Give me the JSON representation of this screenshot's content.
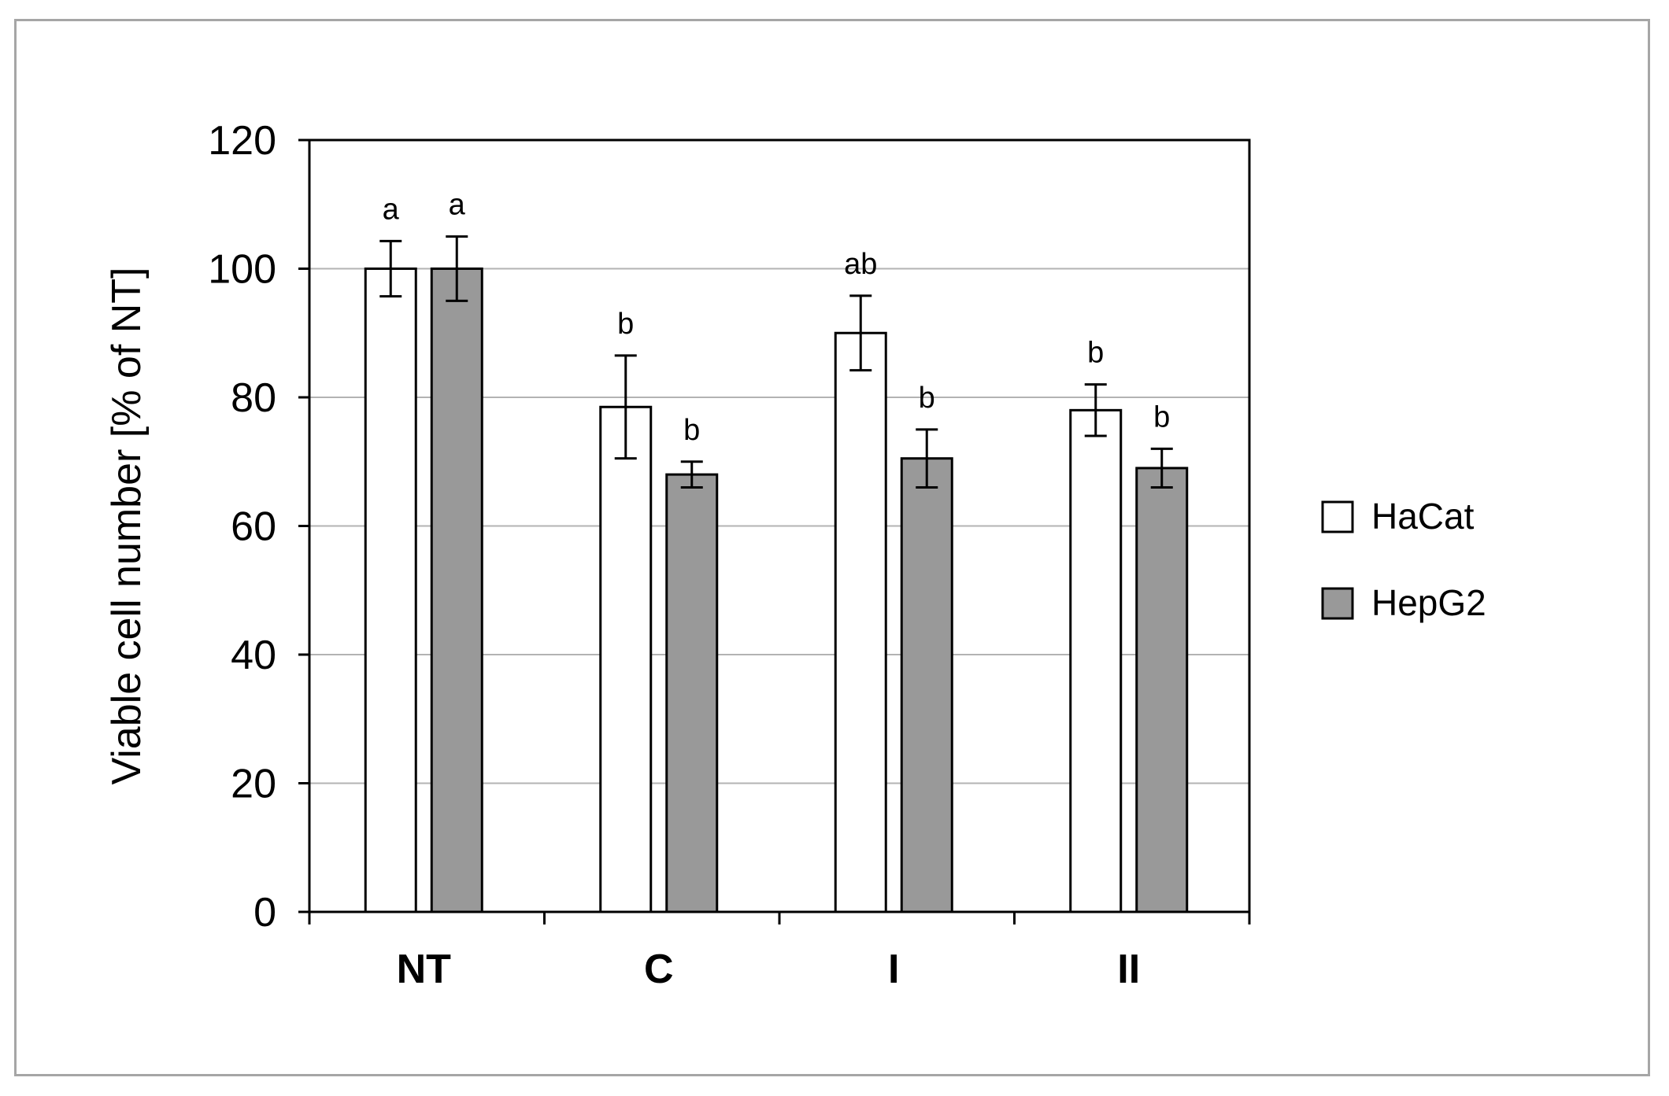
{
  "chart_data": {
    "type": "bar",
    "ylabel": "Viable cell number [% of NT]",
    "xlabel": "",
    "ylim": [
      0,
      120
    ],
    "yticks": [
      0,
      20,
      40,
      60,
      80,
      100,
      120
    ],
    "grid": "horizontal",
    "legend_position": "right",
    "categories": [
      "NT",
      "C",
      "I",
      "II"
    ],
    "series": [
      {
        "name": "HaCat",
        "color": "#ffffff",
        "values": [
          100,
          78.5,
          90,
          78
        ],
        "error": [
          4.3,
          8.0,
          5.8,
          4.0
        ],
        "annotations": [
          "a",
          "b",
          "ab",
          "b"
        ]
      },
      {
        "name": "HepG2",
        "color": "#999999",
        "values": [
          100,
          68,
          70.5,
          69
        ],
        "error": [
          5.0,
          2.0,
          4.5,
          3.0
        ],
        "annotations": [
          "a",
          "b",
          "b",
          "b"
        ]
      }
    ]
  }
}
